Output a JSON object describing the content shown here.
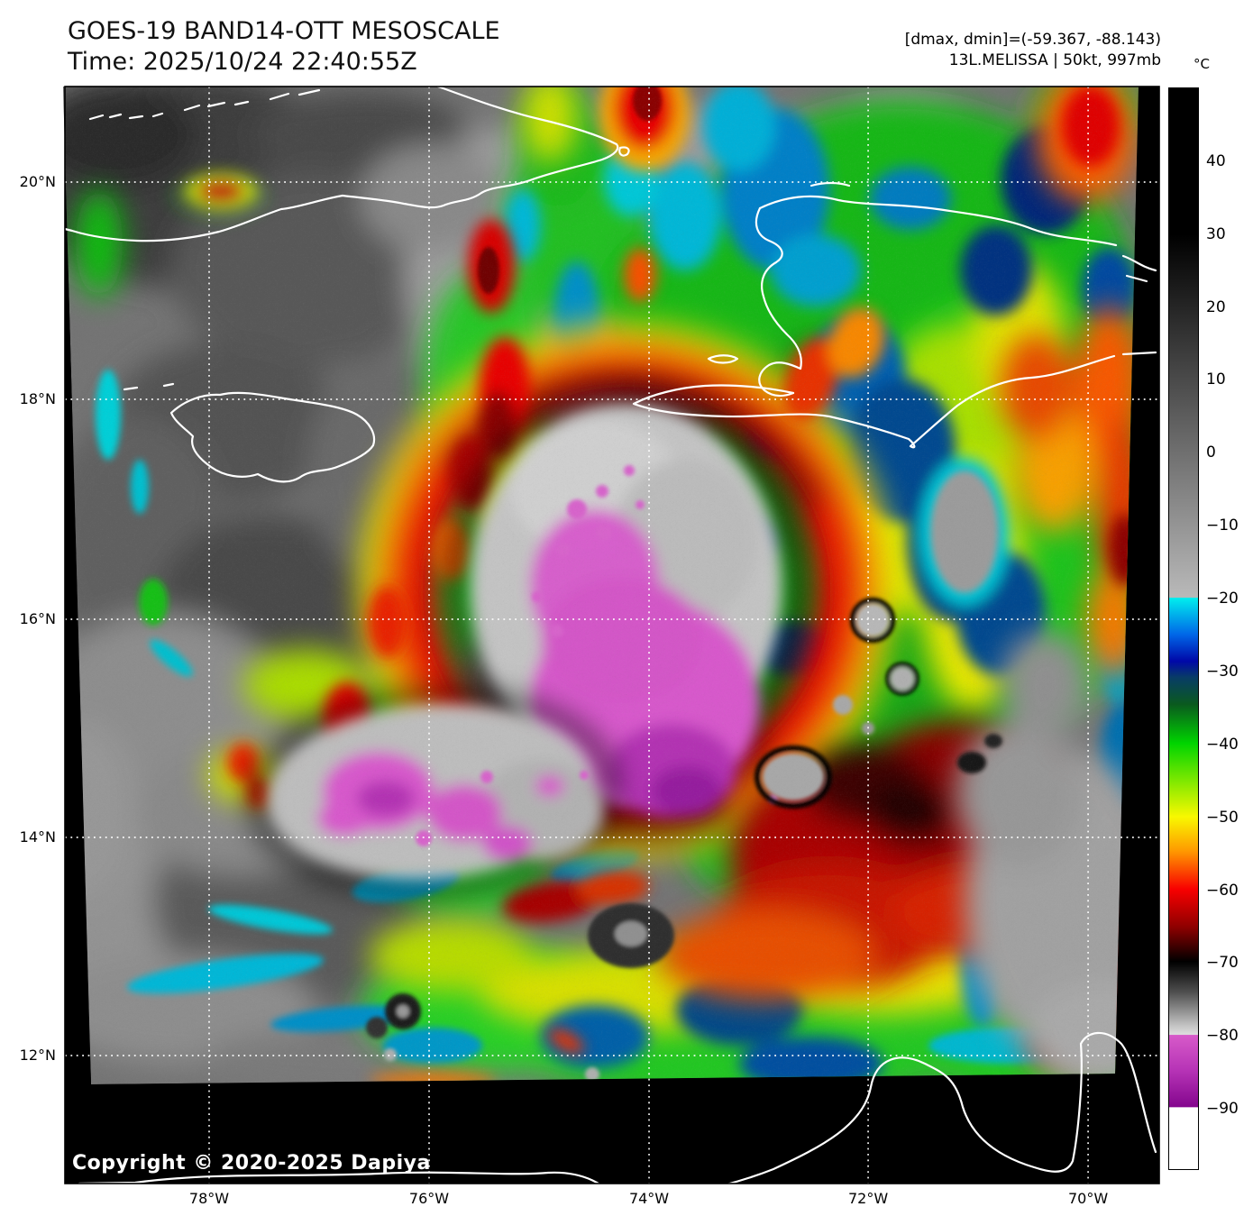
{
  "header": {
    "title": "GOES-19 BAND14-OTT MESOSCALE",
    "time": "Time: 2025/10/24 22:40:55Z",
    "range_info": "[dmax, dmin]=(-59.367, -88.143)",
    "storm_info": "13L.MELISSA | 50kt, 997mb"
  },
  "colorbar": {
    "unit": "°C",
    "ticks": [
      {
        "label": "40",
        "f": 0.0675
      },
      {
        "label": "30",
        "f": 0.135
      },
      {
        "label": "20",
        "f": 0.2025
      },
      {
        "label": "10",
        "f": 0.2695
      },
      {
        "label": "0",
        "f": 0.3369
      },
      {
        "label": "−10",
        "f": 0.4043
      },
      {
        "label": "−20",
        "f": 0.4717
      },
      {
        "label": "−30",
        "f": 0.5391
      },
      {
        "label": "−40",
        "f": 0.6065
      },
      {
        "label": "−50",
        "f": 0.674
      },
      {
        "label": "−60",
        "f": 0.7413
      },
      {
        "label": "−70",
        "f": 0.8087
      },
      {
        "label": "−80",
        "f": 0.8761
      },
      {
        "label": "−90",
        "f": 0.9435
      }
    ],
    "stops": [
      {
        "p": 0,
        "c": "#000000"
      },
      {
        "p": 13.5,
        "c": "#000000"
      },
      {
        "p": 47.1,
        "c": "#b9b9b9"
      },
      {
        "p": 47.15,
        "c": "#00eeee"
      },
      {
        "p": 50.5,
        "c": "#0068e8"
      },
      {
        "p": 53.0,
        "c": "#0008a8"
      },
      {
        "p": 54.5,
        "c": "#083c66"
      },
      {
        "p": 57.0,
        "c": "#0a5a1e"
      },
      {
        "p": 60.6,
        "c": "#00d400"
      },
      {
        "p": 64.0,
        "c": "#7ce800"
      },
      {
        "p": 67.4,
        "c": "#f8f800"
      },
      {
        "p": 70.6,
        "c": "#ff9800"
      },
      {
        "p": 74.1,
        "c": "#f80000"
      },
      {
        "p": 77.6,
        "c": "#8e0000"
      },
      {
        "p": 80.8,
        "c": "#000000"
      },
      {
        "p": 83.6,
        "c": "#4e4e4e"
      },
      {
        "p": 86.8,
        "c": "#c6c6c6"
      },
      {
        "p": 87.55,
        "c": "#dedede"
      },
      {
        "p": 87.6,
        "c": "#d75ac9"
      },
      {
        "p": 90.9,
        "c": "#b633b6"
      },
      {
        "p": 94.25,
        "c": "#84068e"
      },
      {
        "p": 94.3,
        "c": "#ffffff"
      },
      {
        "p": 100,
        "c": "#ffffff"
      }
    ]
  },
  "axes": {
    "lat": [
      {
        "label": "20°N",
        "f": 0.0871
      },
      {
        "label": "18°N",
        "f": 0.2851
      },
      {
        "label": "16°N",
        "f": 0.4856
      },
      {
        "label": "14°N",
        "f": 0.6845
      },
      {
        "label": "12°N",
        "f": 0.8833
      }
    ],
    "lon": [
      {
        "label": "78°W",
        "f": 0.1318
      },
      {
        "label": "76°W",
        "f": 0.3328
      },
      {
        "label": "74°W",
        "f": 0.5338
      },
      {
        "label": "72°W",
        "f": 0.734
      },
      {
        "label": "70°W",
        "f": 0.935
      }
    ]
  },
  "footer": {
    "copyright": "Copyright © 2020-2025 Dapiya"
  },
  "key_colors": {
    "coldest_core": "#84068e",
    "very_cold_magenta": "#d75ac9",
    "cold_overshoot_gray": "#c4c4c4",
    "deep_convection_red": "#f80000",
    "anvil_green": "#1fc41f",
    "warm_ocean_gray": "#747474",
    "space_fill": "#000000"
  }
}
